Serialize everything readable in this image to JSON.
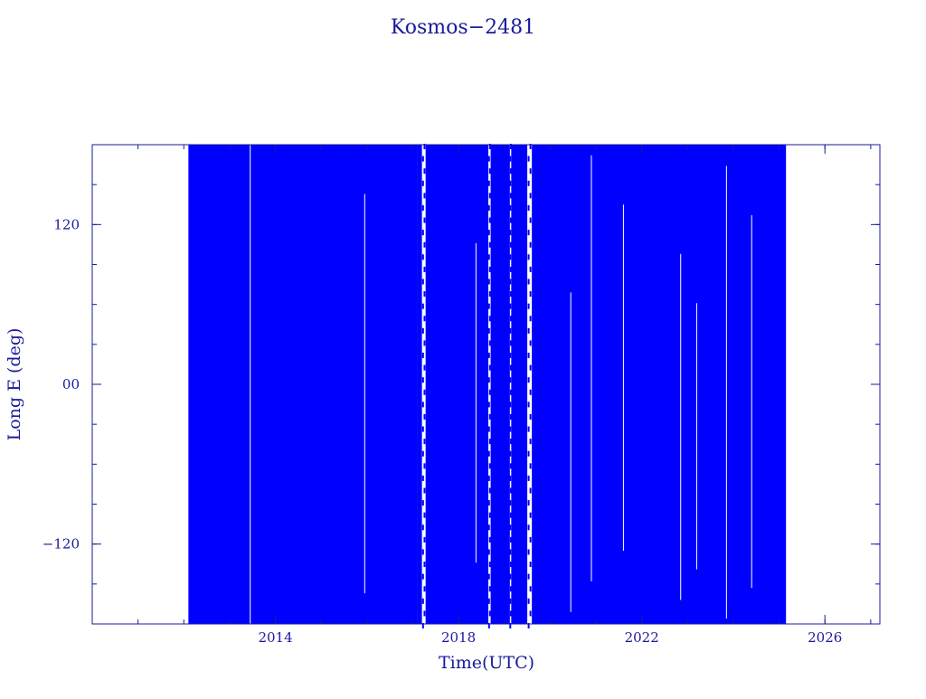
{
  "chart_data": {
    "type": "scatter",
    "title": "Kosmos−2481",
    "xlabel": "Time(UTC)",
    "ylabel": "Long E (deg)",
    "xlim": [
      2010.0,
      2027.2
    ],
    "ylim": [
      -180,
      180
    ],
    "x_ticks": [
      {
        "value": 2014,
        "label": "2014"
      },
      {
        "value": 2018,
        "label": "2018"
      },
      {
        "value": 2022,
        "label": "2022"
      },
      {
        "value": 2026,
        "label": "2026"
      }
    ],
    "y_ticks": [
      {
        "value": -120,
        "label": "−120"
      },
      {
        "value": 0,
        "label": "00"
      },
      {
        "value": 120,
        "label": "120"
      }
    ],
    "x_minor_step": 1,
    "y_minor_step": 30,
    "grid": false,
    "marker_color": "#0000ff",
    "axis_color": "#1a1a9c",
    "coverage_spans": [
      {
        "x": [
          2012.1,
          2017.1
        ],
        "y": [
          -180,
          180
        ]
      },
      {
        "x": [
          2017.1,
          2017.2
        ],
        "y": [
          -180,
          180
        ]
      },
      {
        "x": [
          2017.28,
          2018.65
        ],
        "y": [
          -180,
          180
        ]
      },
      {
        "x": [
          2018.7,
          2019.12
        ],
        "y": [
          -180,
          180
        ]
      },
      {
        "x": [
          2019.15,
          2019.5
        ],
        "y": [
          -180,
          180
        ]
      },
      {
        "x": [
          2019.6,
          2025.15
        ],
        "y": [
          -180,
          180
        ]
      }
    ],
    "gaps": [
      {
        "x": [
          2017.2,
          2017.28
        ],
        "y": [
          -180,
          180
        ]
      },
      {
        "x": [
          2018.65,
          2018.7
        ],
        "y": [
          -180,
          180
        ]
      },
      {
        "x": [
          2019.12,
          2019.15
        ],
        "y": [
          -180,
          180
        ]
      },
      {
        "x": [
          2019.5,
          2019.6
        ],
        "y": [
          -180,
          180
        ]
      }
    ]
  }
}
